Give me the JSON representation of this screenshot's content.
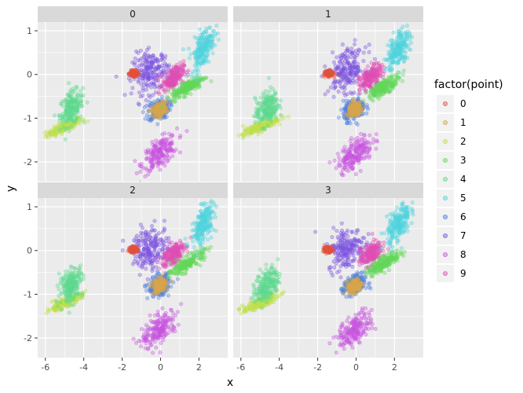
{
  "chart_data": {
    "type": "scatter",
    "xlabel": "x",
    "ylabel": "y",
    "xlim": [
      -6.4,
      3.5
    ],
    "ylim": [
      -2.45,
      1.2
    ],
    "x_ticks": [
      -6,
      -4,
      -2,
      0,
      2
    ],
    "x_tick_labels": [
      "-6",
      "-4",
      "-2",
      "0",
      "2"
    ],
    "y_ticks": [
      -2,
      -1,
      0,
      1
    ],
    "y_tick_labels": [
      "-2",
      "-1",
      "0",
      "1"
    ],
    "grid": true,
    "facets": [
      "0",
      "1",
      "2",
      "3"
    ],
    "legend": {
      "title": "factor(point)",
      "position": "right",
      "entries": [
        "0",
        "1",
        "2",
        "3",
        "4",
        "5",
        "6",
        "7",
        "8",
        "9"
      ]
    },
    "colors": [
      "#F8766D",
      "#D89000",
      "#A3A500",
      "#39B600",
      "#00BF7D",
      "#00BFC4",
      "#00B0F6",
      "#9590FF",
      "#E76BF3",
      "#FF62BC"
    ],
    "point_colors": [
      "#e0523f",
      "#d7a64e",
      "#bfe04c",
      "#63d85a",
      "#5ed98f",
      "#4fd3de",
      "#4a7fdf",
      "#7c52e0",
      "#c955e0",
      "#e04fb4"
    ],
    "clusters": [
      {
        "name": "0",
        "cx": -1.4,
        "cy": 0.02,
        "sx": 0.1,
        "sy": 0.03,
        "rho": 0.0
      },
      {
        "name": "1",
        "cx": -0.05,
        "cy": -0.8,
        "sx": 0.18,
        "sy": 0.08,
        "rho": 0.3
      },
      {
        "name": "2",
        "cx": -5.0,
        "cy": -1.2,
        "sx": 0.45,
        "sy": 0.1,
        "rho": 0.85
      },
      {
        "name": "3",
        "cx": 1.45,
        "cy": -0.28,
        "sx": 0.42,
        "sy": 0.13,
        "rho": 0.8
      },
      {
        "name": "4",
        "cx": -4.65,
        "cy": -0.78,
        "sx": 0.3,
        "sy": 0.2,
        "rho": 0.35
      },
      {
        "name": "5",
        "cx": 2.2,
        "cy": 0.6,
        "sx": 0.3,
        "sy": 0.24,
        "rho": 0.55
      },
      {
        "name": "6",
        "cx": -0.1,
        "cy": -0.8,
        "sx": 0.28,
        "sy": 0.12,
        "rho": 0.25
      },
      {
        "name": "7",
        "cx": -0.5,
        "cy": 0.05,
        "sx": 0.48,
        "sy": 0.24,
        "rho": 0.15
      },
      {
        "name": "8",
        "cx": -0.05,
        "cy": -1.8,
        "sx": 0.45,
        "sy": 0.2,
        "rho": 0.6
      },
      {
        "name": "9",
        "cx": 0.65,
        "cy": -0.08,
        "sx": 0.28,
        "sy": 0.14,
        "rho": 0.5
      }
    ],
    "cluster_shifts": {
      "1": {
        "7": [
          0.05,
          0.05
        ],
        "9": [
          0.1,
          0.0
        ]
      },
      "3": {
        "9": [
          0.1,
          0.0
        ],
        "0": [
          -0.05,
          0.0
        ]
      }
    }
  }
}
